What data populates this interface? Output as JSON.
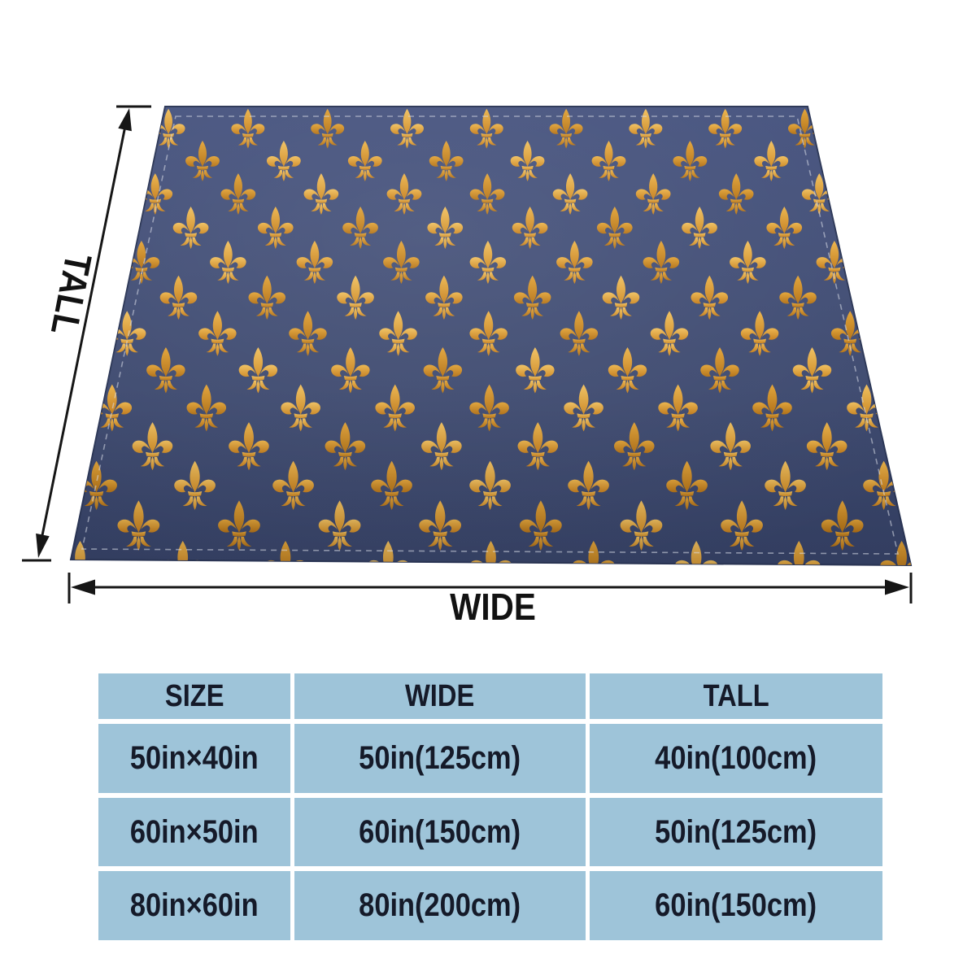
{
  "product_diagram": {
    "tall_arrow_label": "TALL",
    "wide_arrow_label": "WIDE",
    "blanket": {
      "motif": "fleur-de-lis",
      "fabric_color": "#3e4a70",
      "motif_gold_color": "#d9992e",
      "stitch_color": "#d8dde8"
    },
    "annotation_color": "#161616"
  },
  "size_table": {
    "cell_color": "#9ec4d9",
    "gap_color": "#ffffff",
    "text_color": "#151a29",
    "headers": [
      "SIZE",
      "WIDE",
      "TALL"
    ],
    "rows": [
      [
        "50in×40in",
        "50in(125cm)",
        "40in(100cm)"
      ],
      [
        "60in×50in",
        "60in(150cm)",
        "50in(125cm)"
      ],
      [
        "80in×60in",
        "80in(200cm)",
        "60in(150cm)"
      ]
    ]
  }
}
